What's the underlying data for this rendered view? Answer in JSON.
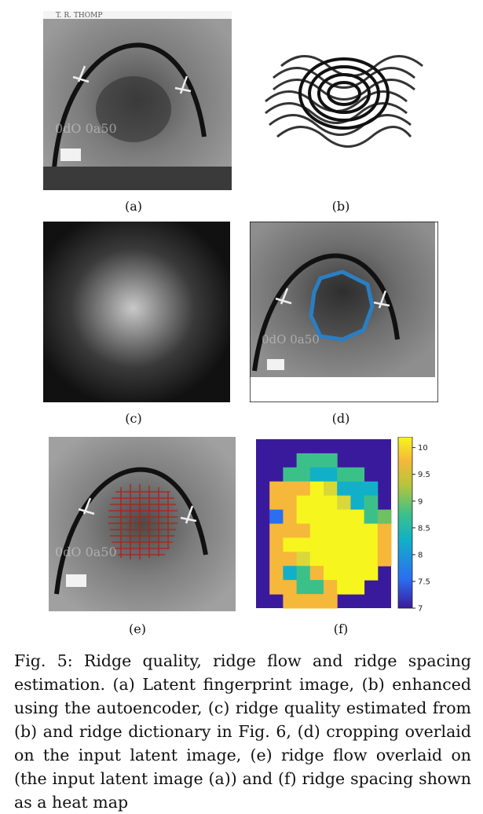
{
  "figure": {
    "panels": [
      {
        "id": "a",
        "label": "(a)",
        "subject": "latent-fingerprint-image",
        "header_text": "T. R. THOMP"
      },
      {
        "id": "b",
        "label": "(b)",
        "subject": "autoencoder-enhanced-image"
      },
      {
        "id": "c",
        "label": "(c)",
        "subject": "ridge-quality-map"
      },
      {
        "id": "d",
        "label": "(d)",
        "subject": "cropping-overlay"
      },
      {
        "id": "e",
        "label": "(e)",
        "subject": "ridge-flow-overlay"
      },
      {
        "id": "f",
        "label": "(f)",
        "subject": "ridge-spacing-heatmap"
      }
    ],
    "colorbar": {
      "ticks": [
        "10",
        "9.5",
        "9",
        "8.5",
        "8",
        "7.5",
        "7"
      ],
      "min": 7,
      "max": 10.2,
      "colors": [
        "#3a1a9c",
        "#2b6ef0",
        "#12b0c8",
        "#3cc08a",
        "#b8c43a",
        "#f5b83a",
        "#f7f51e"
      ]
    },
    "heatmap_grid": [
      "..........",
      "...AAA....",
      "..AABBAA..",
      ".EEEFGBBB.",
      ".EEFFFGBA.",
      ".CEFFFFFAD",
      ".EEEFFFFFE",
      ".EFFFFFFFE",
      ".EEGFFFFFE",
      ".EBAEFFFF.",
      ".EEAAEFF..",
      "..EEEE...."
    ]
  },
  "caption": {
    "text": "Fig. 5: Ridge quality, ridge flow and ridge spacing estimation. (a) Latent fingerprint image, (b) enhanced using the autoencoder, (c) ridge quality estimated from (b) and ridge dictionary in Fig. 6, (d) cropping overlaid on the input latent image, (e) ridge flow overlaid on (the input latent image (a)) and (f) ridge spacing shown as a heat map"
  }
}
